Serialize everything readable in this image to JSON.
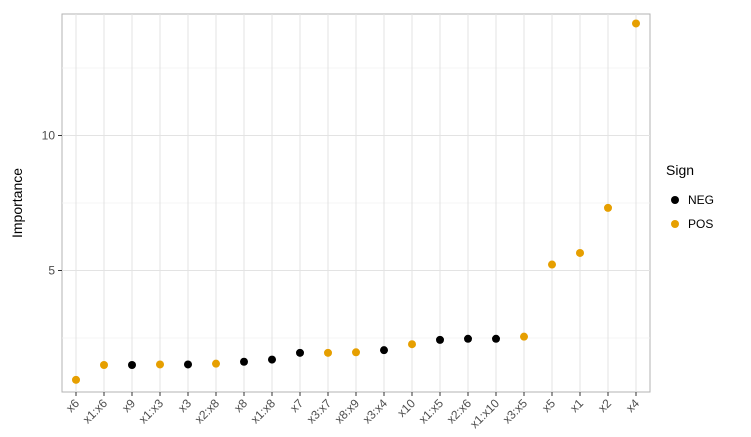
{
  "chart_data": {
    "type": "scatter",
    "title": "",
    "xlabel": "",
    "ylabel": "Importance",
    "ylim": [
      0.5,
      14.5
    ],
    "y_ticks": [
      5,
      10
    ],
    "grid": true,
    "legend": {
      "title": "Sign",
      "placement": "right",
      "entries": [
        {
          "label": "NEG",
          "color": "#000000"
        },
        {
          "label": "POS",
          "color": "#E69F00"
        }
      ]
    },
    "points": [
      {
        "x": "x6",
        "y": 0.95,
        "sign": "POS"
      },
      {
        "x": "x1:x6",
        "y": 1.5,
        "sign": "POS"
      },
      {
        "x": "x9",
        "y": 1.5,
        "sign": "NEG"
      },
      {
        "x": "x1:x3",
        "y": 1.52,
        "sign": "POS"
      },
      {
        "x": "x3",
        "y": 1.52,
        "sign": "NEG"
      },
      {
        "x": "x2:x8",
        "y": 1.55,
        "sign": "POS"
      },
      {
        "x": "x8",
        "y": 1.62,
        "sign": "NEG"
      },
      {
        "x": "x1:x8",
        "y": 1.7,
        "sign": "NEG"
      },
      {
        "x": "x7",
        "y": 1.95,
        "sign": "NEG"
      },
      {
        "x": "x3:x7",
        "y": 1.95,
        "sign": "POS"
      },
      {
        "x": "x8:x9",
        "y": 1.97,
        "sign": "POS"
      },
      {
        "x": "x3:x4",
        "y": 2.05,
        "sign": "NEG"
      },
      {
        "x": "x10",
        "y": 2.27,
        "sign": "POS"
      },
      {
        "x": "x1:x5",
        "y": 2.43,
        "sign": "NEG"
      },
      {
        "x": "x2:x6",
        "y": 2.47,
        "sign": "NEG"
      },
      {
        "x": "x1:x10",
        "y": 2.47,
        "sign": "NEG"
      },
      {
        "x": "x3:x5",
        "y": 2.55,
        "sign": "POS"
      },
      {
        "x": "x5",
        "y": 5.22,
        "sign": "POS"
      },
      {
        "x": "x1",
        "y": 5.65,
        "sign": "POS"
      },
      {
        "x": "x2",
        "y": 7.32,
        "sign": "POS"
      },
      {
        "x": "x4",
        "y": 14.15,
        "sign": "POS"
      }
    ]
  }
}
